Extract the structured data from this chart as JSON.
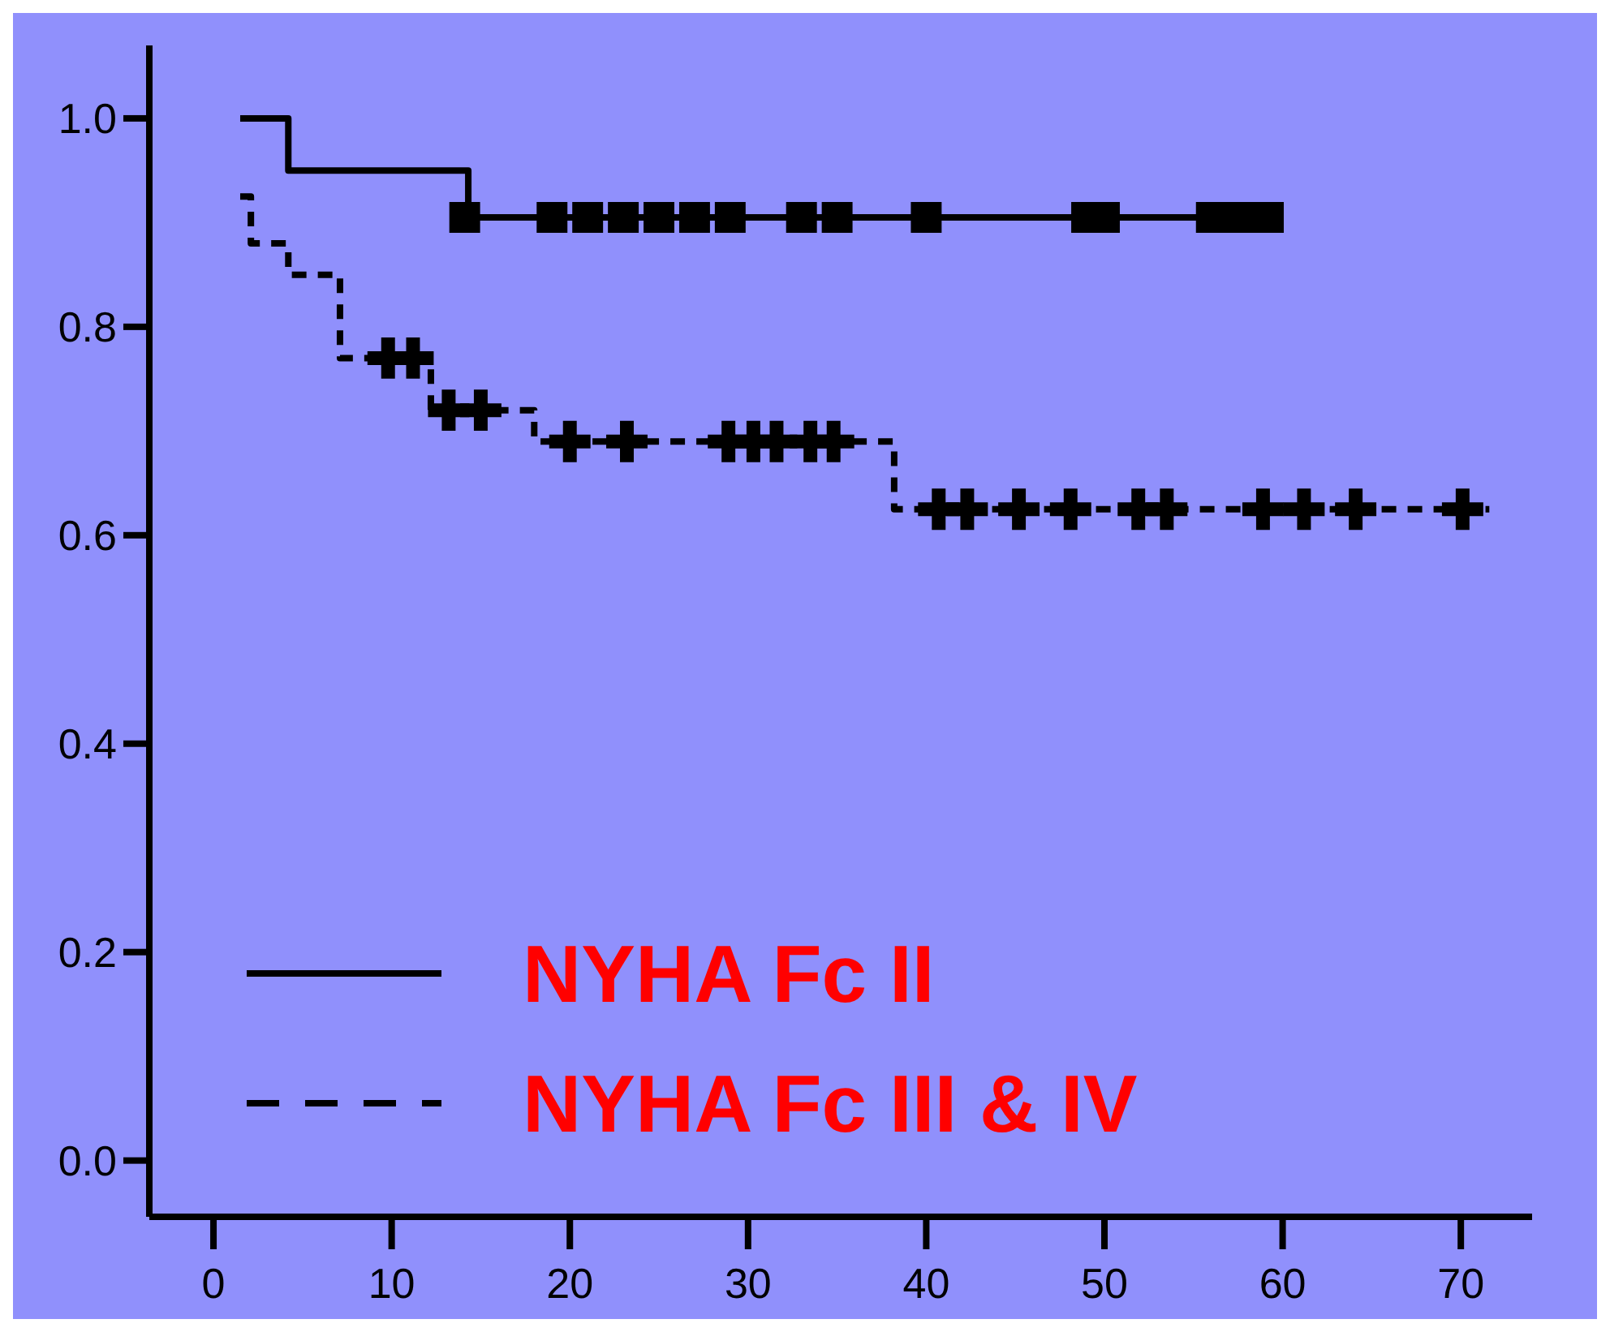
{
  "chart_data": {
    "type": "step",
    "xlim": [
      -3.6,
      74
    ],
    "ylim": [
      -0.054,
      1.07
    ],
    "xticks": [
      0,
      10,
      20,
      30,
      40,
      50,
      60,
      70
    ],
    "yticks": [
      {
        "value": 0,
        "label": "0.0"
      },
      {
        "value": 0.2,
        "label": "0.2"
      },
      {
        "value": 0.4,
        "label": "0.4"
      },
      {
        "value": 0.6,
        "label": "0.6"
      },
      {
        "value": 0.8,
        "label": "0.8"
      },
      {
        "value": 1,
        "label": "1.0"
      }
    ],
    "grid": false,
    "legend": "bottom left",
    "series": [
      {
        "name": "NYHA Fc II",
        "color": "#000000",
        "line_style": "solid",
        "marker": "none",
        "x": [
          1.5,
          4.2,
          14.3,
          60
        ],
        "values": [
          1,
          0.95,
          0.905,
          0.905
        ]
      },
      {
        "name": "NYHA Fc III & IV",
        "color": "#000000",
        "line_style": "dashed",
        "marker": "none",
        "x": [
          1.5,
          2.1,
          4.2,
          7.1,
          12.2,
          18,
          38.2,
          71.6
        ],
        "values": [
          0.925,
          0.88,
          0.85,
          0.77,
          0.72,
          0.69,
          0.625,
          0.625
        ]
      },
      {
        "type": "scatter",
        "color": "#000000",
        "marker": "square",
        "x": [
          14.1,
          19,
          21,
          23,
          25,
          27,
          29,
          33,
          35,
          40,
          49,
          50,
          56,
          57.6,
          59.2
        ],
        "values": [
          0.905,
          0.905,
          0.905,
          0.905,
          0.905,
          0.905,
          0.905,
          0.905,
          0.905,
          0.905,
          0.905,
          0.905,
          0.905,
          0.905,
          0.905
        ]
      },
      {
        "type": "scatter",
        "color": "#000000",
        "marker": "cross",
        "x": [
          9.8,
          11.2,
          13.2,
          15,
          20,
          23.2,
          28.9,
          30.3,
          31.6,
          33.5,
          34.8,
          40.7,
          42.3,
          45.2,
          48.1,
          51.9,
          53.5,
          58.9,
          61.2,
          64.1,
          70.1
        ],
        "values": [
          0.77,
          0.77,
          0.72,
          0.72,
          0.69,
          0.69,
          0.69,
          0.69,
          0.69,
          0.69,
          0.69,
          0.625,
          0.625,
          0.625,
          0.625,
          0.625,
          0.625,
          0.625,
          0.625,
          0.625,
          0.625
        ]
      }
    ]
  }
}
